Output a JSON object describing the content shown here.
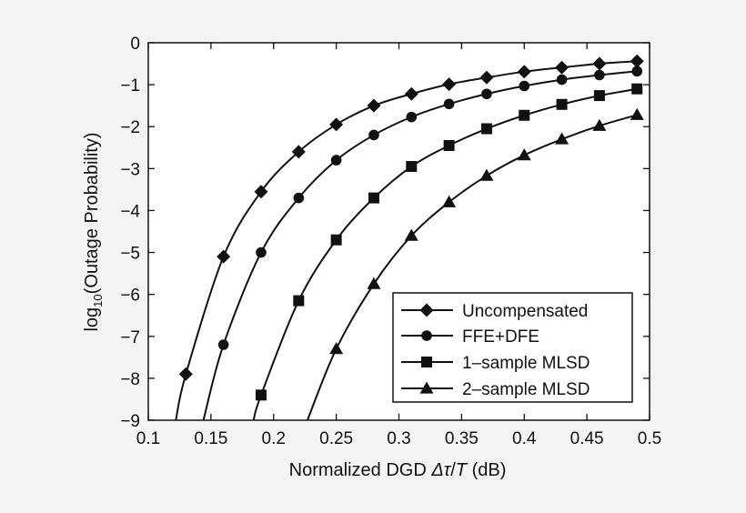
{
  "chart_data": {
    "type": "line",
    "title": "",
    "xlabel_prefix": "Normalized DGD ",
    "xlabel_symbol_delta": "Δ",
    "xlabel_symbol_tau": "τ",
    "xlabel_slash": "/",
    "xlabel_symbol_T": "T",
    "xlabel_suffix": " (dB)",
    "ylabel_prefix": "log",
    "ylabel_subscript": "10",
    "ylabel_suffix": "(Outage Probability)",
    "xlim": [
      0.1,
      0.5
    ],
    "ylim": [
      -9,
      0
    ],
    "x_ticks": [
      0.1,
      0.15,
      0.2,
      0.25,
      0.3,
      0.35,
      0.4,
      0.45,
      0.5
    ],
    "x_tick_labels": [
      "0.1",
      "0.15",
      "0.2",
      "0.25",
      "0.3",
      "0.35",
      "0.4",
      "0.45",
      "0.5"
    ],
    "y_ticks": [
      0,
      -1,
      -2,
      -3,
      -4,
      -5,
      -6,
      -7,
      -8,
      -9
    ],
    "y_tick_labels": [
      "0",
      "−1",
      "−2",
      "−3",
      "−4",
      "−5",
      "−6",
      "−7",
      "−8",
      "−9"
    ],
    "grid": false,
    "legend_position": "bottom-right",
    "series": [
      {
        "name": "Uncompensated",
        "marker": "diamond",
        "curve_x": [
          0.122,
          0.13,
          0.16,
          0.19,
          0.22,
          0.25,
          0.28,
          0.31,
          0.34,
          0.37,
          0.4,
          0.43,
          0.46,
          0.49
        ],
        "curve_y": [
          -9,
          -7.9,
          -5.1,
          -3.55,
          -2.6,
          -1.95,
          -1.5,
          -1.22,
          -0.99,
          -0.83,
          -0.69,
          -0.59,
          -0.5,
          -0.44
        ],
        "x": [
          0.13,
          0.16,
          0.19,
          0.22,
          0.25,
          0.28,
          0.31,
          0.34,
          0.37,
          0.4,
          0.43,
          0.46,
          0.49
        ],
        "y": [
          -7.9,
          -5.1,
          -3.55,
          -2.6,
          -1.95,
          -1.5,
          -1.22,
          -0.99,
          -0.83,
          -0.69,
          -0.59,
          -0.5,
          -0.44
        ]
      },
      {
        "name": "FFE+DFE",
        "marker": "circle",
        "curve_x": [
          0.144,
          0.16,
          0.19,
          0.22,
          0.25,
          0.28,
          0.31,
          0.34,
          0.37,
          0.4,
          0.43,
          0.46,
          0.49
        ],
        "curve_y": [
          -9,
          -7.2,
          -5.0,
          -3.7,
          -2.8,
          -2.2,
          -1.77,
          -1.46,
          -1.22,
          -1.03,
          -0.88,
          -0.77,
          -0.68
        ],
        "x": [
          0.16,
          0.19,
          0.22,
          0.25,
          0.28,
          0.31,
          0.34,
          0.37,
          0.4,
          0.43,
          0.46,
          0.49
        ],
        "y": [
          -7.2,
          -5.0,
          -3.7,
          -2.8,
          -2.2,
          -1.77,
          -1.46,
          -1.22,
          -1.03,
          -0.88,
          -0.77,
          -0.68
        ]
      },
      {
        "name": "1–sample MLSD",
        "marker": "square",
        "curve_x": [
          0.184,
          0.19,
          0.22,
          0.25,
          0.28,
          0.31,
          0.34,
          0.37,
          0.4,
          0.43,
          0.46,
          0.49
        ],
        "curve_y": [
          -9,
          -8.4,
          -6.15,
          -4.7,
          -3.7,
          -2.95,
          -2.45,
          -2.05,
          -1.73,
          -1.47,
          -1.26,
          -1.1
        ],
        "x": [
          0.19,
          0.22,
          0.25,
          0.28,
          0.31,
          0.34,
          0.37,
          0.4,
          0.43,
          0.46,
          0.49
        ],
        "y": [
          -8.4,
          -6.15,
          -4.7,
          -3.7,
          -2.95,
          -2.45,
          -2.05,
          -1.73,
          -1.47,
          -1.26,
          -1.1
        ]
      },
      {
        "name": "2–sample MLSD",
        "marker": "triangle",
        "curve_x": [
          0.227,
          0.25,
          0.28,
          0.31,
          0.34,
          0.37,
          0.4,
          0.43,
          0.46,
          0.49
        ],
        "curve_y": [
          -9,
          -7.3,
          -5.75,
          -4.6,
          -3.8,
          -3.17,
          -2.68,
          -2.3,
          -1.98,
          -1.72
        ],
        "x": [
          0.25,
          0.28,
          0.31,
          0.34,
          0.37,
          0.4,
          0.43,
          0.46,
          0.49
        ],
        "y": [
          -7.3,
          -5.75,
          -4.6,
          -3.8,
          -3.17,
          -2.68,
          -2.3,
          -1.98,
          -1.72
        ]
      }
    ]
  },
  "colors": {
    "background": "#f4f4f4",
    "plot_area": "#ffffff",
    "ink": "#111111"
  }
}
